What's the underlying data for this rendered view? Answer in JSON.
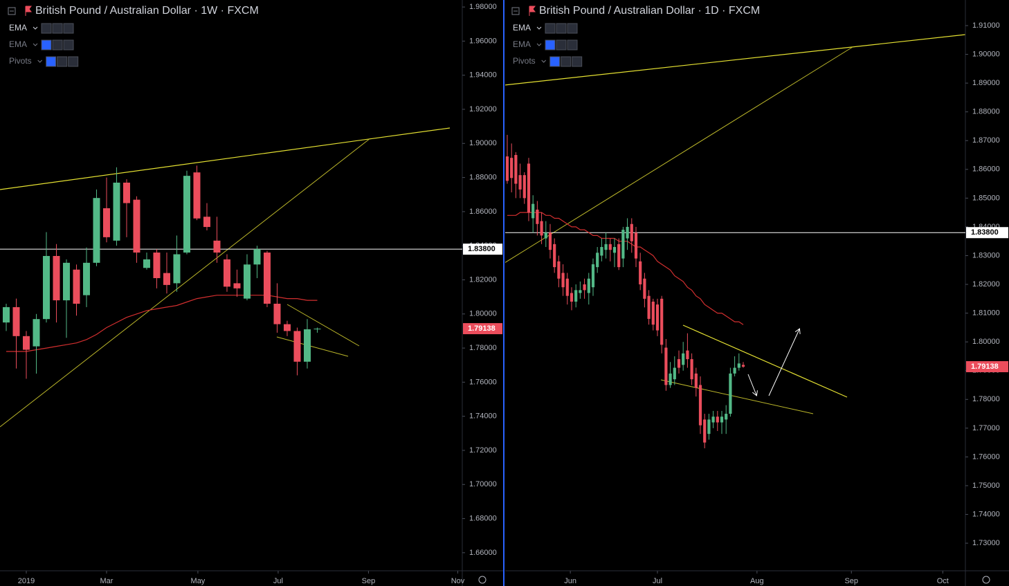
{
  "chart_data": [
    {
      "type": "candlestick",
      "title": "British Pound / Australian Dollar · 1W · FXCM",
      "indicators": [
        "EMA",
        "EMA",
        "Pivots"
      ],
      "open": [
        1.795,
        1.804,
        1.787,
        1.781,
        1.797,
        1.834,
        1.808,
        1.826,
        1.811,
        1.83,
        1.862,
        1.843,
        1.877,
        1.867,
        1.827,
        1.836,
        1.824,
        1.818,
        1.836,
        1.883,
        1.857,
        1.843,
        1.832,
        1.818,
        1.809,
        1.829,
        1.836,
        1.806,
        1.794,
        1.79,
        1.772,
        1.791
      ],
      "high": [
        1.806,
        1.809,
        1.79,
        1.8,
        1.848,
        1.841,
        1.832,
        1.829,
        1.839,
        1.873,
        1.88,
        1.886,
        1.879,
        1.869,
        1.836,
        1.838,
        1.836,
        1.846,
        1.884,
        1.887,
        1.865,
        1.857,
        1.835,
        1.826,
        1.835,
        1.84,
        1.837,
        1.818,
        1.796,
        1.792,
        1.797,
        1.792
      ],
      "low": [
        1.79,
        1.768,
        1.762,
        1.765,
        1.795,
        1.795,
        1.786,
        1.799,
        1.804,
        1.828,
        1.842,
        1.84,
        1.845,
        1.83,
        1.826,
        1.815,
        1.812,
        1.813,
        1.835,
        1.855,
        1.849,
        1.83,
        1.813,
        1.81,
        1.808,
        1.821,
        1.804,
        1.789,
        1.787,
        1.764,
        1.768,
        1.789
      ],
      "close": [
        1.804,
        1.787,
        1.779,
        1.797,
        1.834,
        1.808,
        1.83,
        1.806,
        1.83,
        1.868,
        1.845,
        1.877,
        1.865,
        1.836,
        1.832,
        1.821,
        1.817,
        1.835,
        1.881,
        1.856,
        1.851,
        1.836,
        1.816,
        1.815,
        1.829,
        1.838,
        1.806,
        1.794,
        1.79,
        1.772,
        1.791,
        1.79138
      ],
      "up_color": "#53b987",
      "down_color": "#eb4d5c",
      "ema": {
        "color": "#d32f2f",
        "values": [
          1.778,
          1.778,
          1.778,
          1.779,
          1.78,
          1.781,
          1.782,
          1.783,
          1.785,
          1.788,
          1.792,
          1.795,
          1.798,
          1.8,
          1.802,
          1.803,
          1.804,
          1.805,
          1.807,
          1.809,
          1.81,
          1.811,
          1.811,
          1.811,
          1.811,
          1.811,
          1.811,
          1.81,
          1.809,
          1.809,
          1.808,
          1.808
        ]
      },
      "xlim": [
        -0.62,
        45.45
      ],
      "xticks": [
        {
          "value": 2,
          "label": "2019"
        },
        {
          "value": 10,
          "label": "Mar"
        },
        {
          "value": 19.1,
          "label": "May"
        },
        {
          "value": 27.1,
          "label": "Jul"
        },
        {
          "value": 36.1,
          "label": "Sep"
        },
        {
          "value": 45,
          "label": "Nov"
        }
      ],
      "ylim": [
        1.6494,
        1.9841
      ],
      "yticks": [
        {
          "value": 1.98,
          "label": "1.98000"
        },
        {
          "value": 1.96,
          "label": "1.96000"
        },
        {
          "value": 1.94,
          "label": "1.94000"
        },
        {
          "value": 1.92,
          "label": "1.92000"
        },
        {
          "value": 1.9,
          "label": "1.90000"
        },
        {
          "value": 1.88,
          "label": "1.88000"
        },
        {
          "value": 1.86,
          "label": "1.86000"
        },
        {
          "value": 1.84,
          "label": "1.84000"
        },
        {
          "value": 1.82,
          "label": "1.82000"
        },
        {
          "value": 1.8,
          "label": "1.80000"
        },
        {
          "value": 1.78,
          "label": "1.78000"
        },
        {
          "value": 1.76,
          "label": "1.76000"
        },
        {
          "value": 1.74,
          "label": "1.74000"
        },
        {
          "value": 1.72,
          "label": "1.72000"
        },
        {
          "value": 1.7,
          "label": "1.70000"
        },
        {
          "value": 1.68,
          "label": "1.68000"
        },
        {
          "value": 1.66,
          "label": "1.66000"
        }
      ],
      "hline": {
        "value": 1.838,
        "label": "1.83800",
        "color": "#ffffff"
      },
      "last_price": {
        "value": 1.79138,
        "label": "1.79138",
        "color": "#eb4d5c"
      }
    },
    {
      "type": "candlestick",
      "title": "British Pound / Australian Dollar · 1D · FXCM",
      "indicators": [
        "EMA",
        "EMA",
        "Pivots"
      ],
      "open": [
        1.8645,
        1.864,
        1.865,
        1.858,
        1.858,
        1.862,
        1.843,
        1.846,
        1.842,
        1.836,
        1.838,
        1.834,
        1.828,
        1.824,
        1.822,
        1.817,
        1.814,
        1.817,
        1.82,
        1.817,
        1.819,
        1.826,
        1.83,
        1.832,
        1.834,
        1.831,
        1.834,
        1.829,
        1.836,
        1.841,
        1.838,
        1.828,
        1.822,
        1.816,
        1.814,
        1.813,
        1.815,
        1.798,
        1.785,
        1.787,
        1.794,
        1.792,
        1.797,
        1.794,
        1.789,
        1.785,
        1.773,
        1.768,
        1.772,
        1.774,
        1.772,
        1.773,
        1.775,
        1.789,
        1.791,
        1.792
      ],
      "high": [
        1.872,
        1.869,
        1.866,
        1.862,
        1.859,
        1.864,
        1.851,
        1.849,
        1.845,
        1.842,
        1.841,
        1.836,
        1.83,
        1.827,
        1.824,
        1.819,
        1.82,
        1.821,
        1.822,
        1.824,
        1.829,
        1.833,
        1.836,
        1.838,
        1.836,
        1.836,
        1.836,
        1.84,
        1.843,
        1.843,
        1.84,
        1.831,
        1.824,
        1.818,
        1.815,
        1.815,
        1.816,
        1.801,
        1.793,
        1.795,
        1.797,
        1.8,
        1.803,
        1.796,
        1.791,
        1.788,
        1.775,
        1.775,
        1.776,
        1.776,
        1.776,
        1.778,
        1.791,
        1.795,
        1.796,
        1.793
      ],
      "low": [
        1.855,
        1.852,
        1.85,
        1.85,
        1.848,
        1.842,
        1.838,
        1.837,
        1.834,
        1.833,
        1.829,
        1.824,
        1.819,
        1.816,
        1.813,
        1.811,
        1.812,
        1.815,
        1.815,
        1.813,
        1.816,
        1.824,
        1.828,
        1.829,
        1.828,
        1.826,
        1.825,
        1.826,
        1.832,
        1.831,
        1.826,
        1.818,
        1.812,
        1.806,
        1.804,
        1.802,
        1.796,
        1.783,
        1.784,
        1.785,
        1.789,
        1.79,
        1.791,
        1.785,
        1.781,
        1.768,
        1.763,
        1.766,
        1.77,
        1.769,
        1.768,
        1.768,
        1.774,
        1.788,
        1.79,
        1.791
      ],
      "close": [
        1.856,
        1.857,
        1.855,
        1.853,
        1.85,
        1.845,
        1.848,
        1.841,
        1.837,
        1.838,
        1.832,
        1.826,
        1.822,
        1.819,
        1.816,
        1.814,
        1.818,
        1.818,
        1.818,
        1.822,
        1.827,
        1.831,
        1.833,
        1.834,
        1.832,
        1.833,
        1.826,
        1.839,
        1.84,
        1.835,
        1.829,
        1.82,
        1.815,
        1.808,
        1.806,
        1.804,
        1.799,
        1.785,
        1.789,
        1.791,
        1.791,
        1.796,
        1.794,
        1.787,
        1.784,
        1.771,
        1.765,
        1.773,
        1.774,
        1.772,
        1.774,
        1.775,
        1.789,
        1.791,
        1.7925,
        1.79138
      ],
      "up_color": "#53b987",
      "down_color": "#eb4d5c",
      "ema": {
        "color": "#d32f2f",
        "values": [
          1.844,
          1.844,
          1.844,
          1.845,
          1.845,
          1.845,
          1.845,
          1.845,
          1.845,
          1.844,
          1.844,
          1.843,
          1.843,
          1.842,
          1.841,
          1.84,
          1.84,
          1.839,
          1.839,
          1.838,
          1.837,
          1.837,
          1.836,
          1.836,
          1.836,
          1.836,
          1.835,
          1.835,
          1.835,
          1.834,
          1.833,
          1.833,
          1.832,
          1.831,
          1.83,
          1.828,
          1.827,
          1.826,
          1.825,
          1.823,
          1.822,
          1.821,
          1.819,
          1.818,
          1.816,
          1.815,
          1.813,
          1.812,
          1.811,
          1.81,
          1.81,
          1.809,
          1.808,
          1.807,
          1.807,
          1.806
        ]
      },
      "xlim": [
        -0.48,
        106.77
      ],
      "xticks": [
        {
          "value": 14.7,
          "label": "Jun"
        },
        {
          "value": 35,
          "label": "Jul"
        },
        {
          "value": 58.2,
          "label": "Aug"
        },
        {
          "value": 80.2,
          "label": "Sep"
        },
        {
          "value": 101.5,
          "label": "Oct"
        }
      ],
      "ylim": [
        1.7204,
        1.9189
      ],
      "yticks": [
        {
          "value": 1.91,
          "label": "1.91000"
        },
        {
          "value": 1.9,
          "label": "1.90000"
        },
        {
          "value": 1.89,
          "label": "1.89000"
        },
        {
          "value": 1.88,
          "label": "1.88000"
        },
        {
          "value": 1.87,
          "label": "1.87000"
        },
        {
          "value": 1.86,
          "label": "1.86000"
        },
        {
          "value": 1.85,
          "label": "1.85000"
        },
        {
          "value": 1.84,
          "label": "1.84000"
        },
        {
          "value": 1.83,
          "label": "1.83000"
        },
        {
          "value": 1.82,
          "label": "1.82000"
        },
        {
          "value": 1.81,
          "label": "1.81000"
        },
        {
          "value": 1.8,
          "label": "1.80000"
        },
        {
          "value": 1.79,
          "label": "1.79000"
        },
        {
          "value": 1.78,
          "label": "1.78000"
        },
        {
          "value": 1.77,
          "label": "1.77000"
        },
        {
          "value": 1.76,
          "label": "1.76000"
        },
        {
          "value": 1.75,
          "label": "1.75000"
        },
        {
          "value": 1.74,
          "label": "1.74000"
        },
        {
          "value": 1.73,
          "label": "1.73000"
        }
      ],
      "hline": {
        "value": 1.838,
        "label": "1.83800",
        "color": "#ffffff"
      },
      "last_price": {
        "value": 1.79138,
        "label": "1.79138",
        "color": "#eb4d5c"
      }
    }
  ]
}
